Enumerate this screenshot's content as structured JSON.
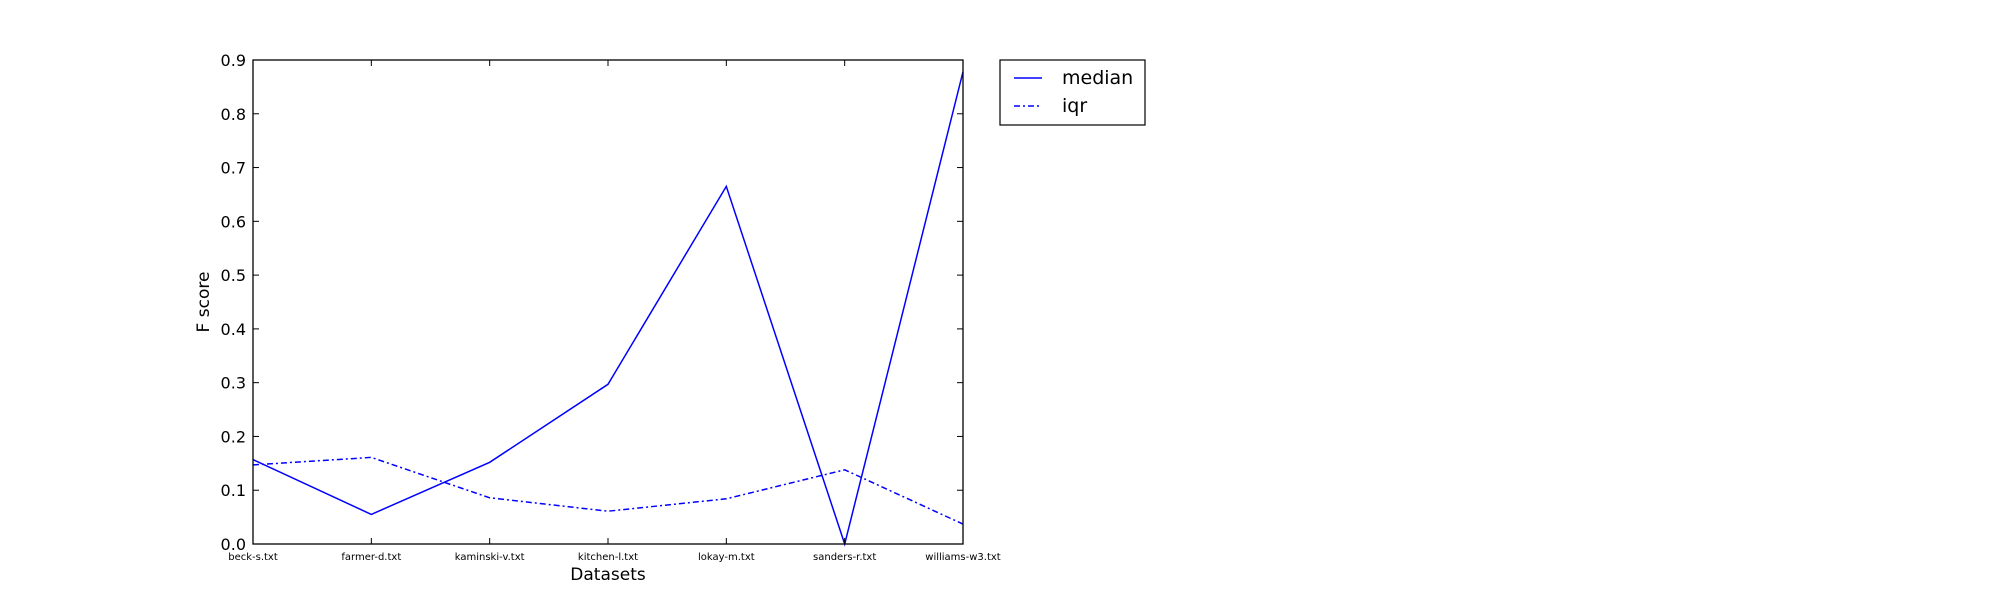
{
  "chart_data": {
    "type": "line",
    "categories": [
      "beck-s.txt",
      "farmer-d.txt",
      "kaminski-v.txt",
      "kitchen-l.txt",
      "lokay-m.txt",
      "sanders-r.txt",
      "williams-w3.txt"
    ],
    "series": [
      {
        "name": "median",
        "values": [
          0.157,
          0.055,
          0.152,
          0.297,
          0.665,
          0.0,
          0.878
        ],
        "color": "#0000ff",
        "linestyle": "solid"
      },
      {
        "name": "iqr",
        "values": [
          0.147,
          0.161,
          0.086,
          0.061,
          0.084,
          0.138,
          0.037
        ],
        "color": "#0000ff",
        "linestyle": "dashdot"
      }
    ],
    "title": "",
    "xlabel": "Datasets",
    "ylabel": "F score",
    "ylim": [
      0,
      0.9
    ],
    "yticks": [
      "0.0",
      "0.1",
      "0.2",
      "0.3",
      "0.4",
      "0.5",
      "0.6",
      "0.7",
      "0.8",
      "0.9"
    ],
    "grid": false,
    "legend_position": "outside-upper-right"
  }
}
